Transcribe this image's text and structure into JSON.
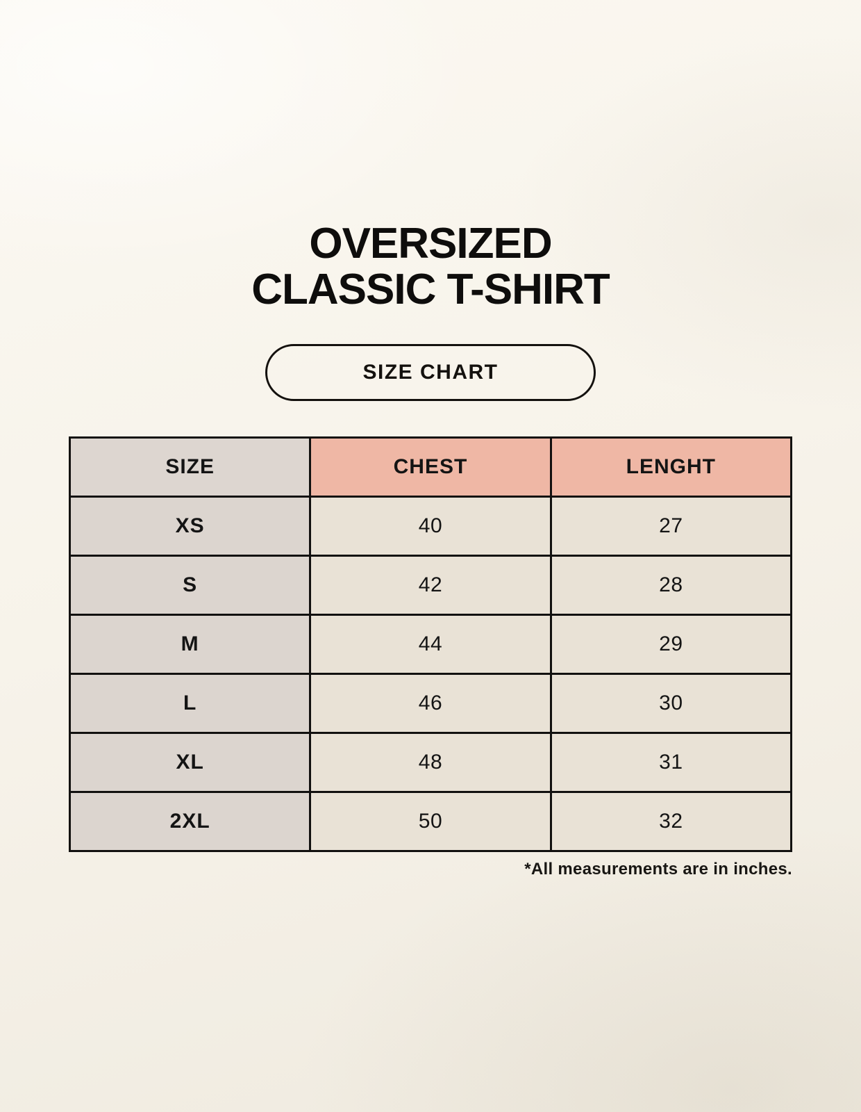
{
  "header": {
    "title_line1": "OVERSIZED",
    "title_line2": "CLASSIC T-SHIRT",
    "badge_label": "SIZE CHART"
  },
  "colors": {
    "background": "#f8f4ec",
    "header_size_bg": "#ddd6d0",
    "header_measure_bg": "#efb7a5",
    "row_label_bg": "#dcd5cf",
    "row_value_bg": "#e9e2d6",
    "border": "#121110",
    "text": "#141414"
  },
  "chart_data": {
    "type": "table",
    "title": "OVERSIZED CLASSIC T-SHIRT",
    "subtitle": "SIZE CHART",
    "columns": [
      "SIZE",
      "CHEST",
      "LENGHT"
    ],
    "rows": [
      [
        "XS",
        "40",
        "27"
      ],
      [
        "S",
        "42",
        "28"
      ],
      [
        "M",
        "44",
        "29"
      ],
      [
        "L",
        "46",
        "30"
      ],
      [
        "XL",
        "48",
        "31"
      ],
      [
        "2XL",
        "50",
        "32"
      ]
    ],
    "note": "*All measurements are in inches.",
    "units": "inches"
  }
}
